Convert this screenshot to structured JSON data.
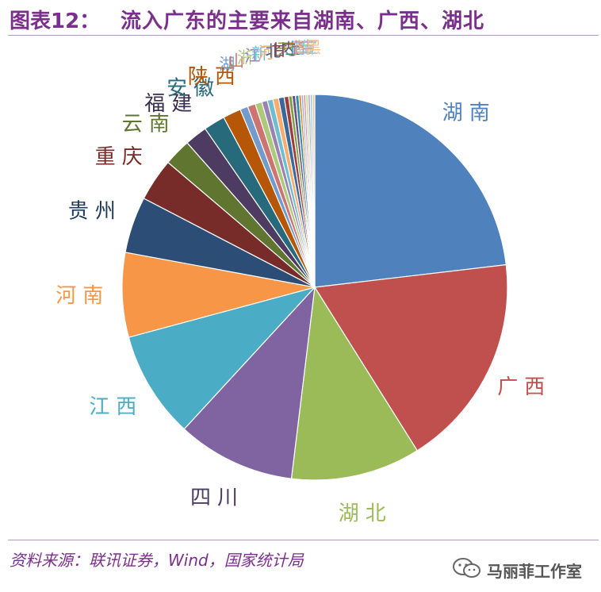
{
  "header": {
    "figure_number": "图表12：",
    "title": "流入广东的主要来自湖南、广西、湖北"
  },
  "footer": {
    "source": "资料来源：联讯证券，Wind，国家统计局",
    "watermark_text": "马丽菲工作室"
  },
  "chart_data": {
    "type": "pie",
    "title": "流入广东的主要来自湖南、广西、湖北",
    "slices": [
      {
        "label": "湖南",
        "value": 24.5,
        "color": "#4f81bd"
      },
      {
        "label": "广西",
        "value": 19.0,
        "color": "#c0504d"
      },
      {
        "label": "湖北",
        "value": 11.5,
        "color": "#9bbb59"
      },
      {
        "label": "四川",
        "value": 10.5,
        "color": "#8064a2"
      },
      {
        "label": "江西",
        "value": 9.5,
        "color": "#4bacc6"
      },
      {
        "label": "河南",
        "value": 7.5,
        "color": "#f79646"
      },
      {
        "label": "贵州",
        "value": 5.0,
        "color": "#2c4d75"
      },
      {
        "label": "重庆",
        "value": 3.8,
        "color": "#772c2a"
      },
      {
        "label": "云南",
        "value": 2.4,
        "color": "#5f7530"
      },
      {
        "label": "福建",
        "value": 2.0,
        "color": "#4d3b62"
      },
      {
        "label": "安徽",
        "value": 1.9,
        "color": "#276a7c"
      },
      {
        "label": "陕西",
        "value": 1.6,
        "color": "#b65708"
      },
      {
        "label": "湖",
        "value": 0.7,
        "color": "#729aca"
      },
      {
        "label": "山",
        "value": 0.7,
        "color": "#cd7371"
      },
      {
        "label": "浙",
        "value": 0.6,
        "color": "#afc97a"
      },
      {
        "label": "江",
        "value": 0.5,
        "color": "#9983b5"
      },
      {
        "label": "新",
        "value": 0.5,
        "color": "#6fbdd1"
      },
      {
        "label": "河",
        "value": 0.5,
        "color": "#f9ab6b"
      },
      {
        "label": "北",
        "value": 0.5,
        "color": "#3a679c"
      },
      {
        "label": "甘",
        "value": 0.4,
        "color": "#9f3b38"
      },
      {
        "label": "天",
        "value": 0.3,
        "color": "#7f9c40"
      },
      {
        "label": "内",
        "value": 0.3,
        "color": "#664f83"
      },
      {
        "label": "上",
        "value": 0.3,
        "color": "#358ca3"
      },
      {
        "label": "宁",
        "value": 0.2,
        "color": "#df7510"
      },
      {
        "label": "青",
        "value": 0.2,
        "color": "#95b3d7"
      },
      {
        "label": "西",
        "value": 0.2,
        "color": "#d99694"
      },
      {
        "label": "海",
        "value": 0.2,
        "color": "#c3d69b"
      },
      {
        "label": "吉",
        "value": 0.2,
        "color": "#b2a1c7"
      },
      {
        "label": "辽",
        "value": 0.2,
        "color": "#92cddc"
      },
      {
        "label": "黑",
        "value": 0.2,
        "color": "#fac08f"
      }
    ]
  }
}
